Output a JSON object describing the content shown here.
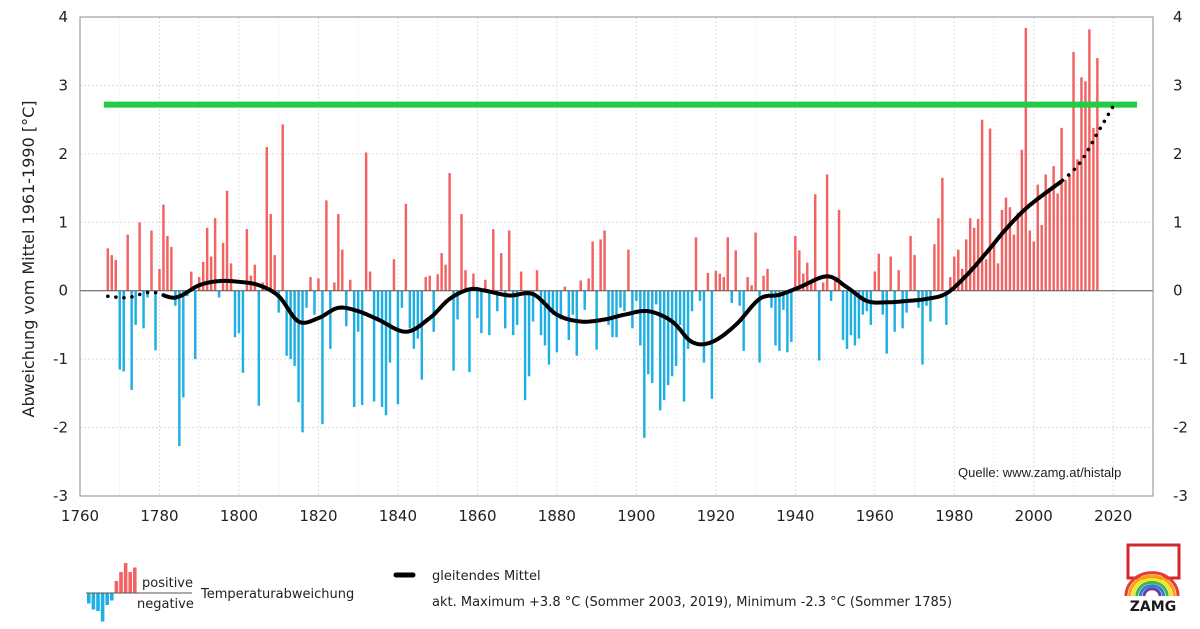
{
  "chart_data": {
    "type": "bar",
    "ylabel": "Abweichung vom Mittel 1961-1990 [°C]",
    "xlim": [
      1760,
      2030
    ],
    "ylim": [
      -3,
      4
    ],
    "xticks": [
      1760,
      1780,
      1800,
      1820,
      1840,
      1860,
      1880,
      1900,
      1920,
      1940,
      1960,
      1980,
      2000,
      2020
    ],
    "yticks": [
      -3,
      -2,
      -1,
      0,
      1,
      2,
      3,
      4
    ],
    "grid": true,
    "colors": {
      "positive": "#f26363",
      "negative": "#1fb0e3",
      "smooth": "#000000",
      "maximum_line": "#22cc44"
    },
    "x_start": 1767,
    "values": [
      0.62,
      0.52,
      0.45,
      -1.15,
      -1.18,
      0.82,
      -1.45,
      -0.5,
      1.0,
      -0.55,
      -0.1,
      0.88,
      -0.87,
      0.32,
      1.26,
      0.8,
      0.64,
      -0.22,
      -2.27,
      -1.56,
      -0.08,
      0.28,
      -1.0,
      0.2,
      0.42,
      0.92,
      0.5,
      1.06,
      -0.1,
      0.7,
      1.46,
      0.4,
      -0.68,
      -0.62,
      -1.2,
      0.9,
      0.22,
      0.38,
      -1.68,
      0.12,
      2.1,
      1.12,
      0.52,
      -0.32,
      2.43,
      -0.95,
      -1.0,
      -1.1,
      -1.63,
      -2.07,
      -0.25,
      0.2,
      -0.35,
      0.18,
      -1.95,
      1.32,
      -0.85,
      0.12,
      1.12,
      0.6,
      -0.52,
      0.16,
      -1.7,
      -0.6,
      -1.67,
      2.02,
      0.28,
      -1.62,
      -0.42,
      -1.7,
      -1.82,
      -1.05,
      0.46,
      -1.66,
      -0.25,
      1.27,
      -0.55,
      -0.85,
      -0.7,
      -1.3,
      0.2,
      0.22,
      -0.6,
      0.24,
      0.55,
      0.38,
      1.72,
      -1.17,
      -0.42,
      1.12,
      0.3,
      -1.19,
      0.25,
      -0.4,
      -0.62,
      0.16,
      -0.65,
      0.9,
      -0.3,
      0.55,
      -0.55,
      0.88,
      -0.65,
      -0.5,
      0.28,
      -1.6,
      -1.25,
      -0.45,
      0.3,
      -0.65,
      -0.8,
      -1.08,
      -0.35,
      -0.9,
      -0.42,
      0.06,
      -0.72,
      -0.35,
      -0.95,
      0.15,
      -0.28,
      0.18,
      0.72,
      -0.86,
      0.75,
      0.88,
      -0.5,
      -0.68,
      -0.68,
      -0.25,
      -0.3,
      0.6,
      -0.55,
      -0.15,
      -0.8,
      -2.15,
      -1.22,
      -1.35,
      -0.2,
      -1.75,
      -1.6,
      -1.38,
      -1.25,
      -1.1,
      -0.5,
      -1.62,
      -0.85,
      -0.3,
      0.78,
      -0.15,
      -1.05,
      0.26,
      -1.58,
      0.29,
      0.25,
      0.2,
      0.78,
      -0.18,
      0.59,
      -0.22,
      -0.88,
      0.2,
      0.08,
      0.85,
      -1.05,
      0.22,
      0.32,
      -0.25,
      -0.8,
      -0.88,
      -0.28,
      -0.9,
      -0.75,
      0.8,
      0.59,
      0.25,
      0.41,
      0.12,
      1.41,
      -1.02,
      0.12,
      1.7,
      -0.15,
      0.2,
      1.18,
      -0.72,
      -0.85,
      -0.65,
      -0.8,
      -0.7,
      -0.35,
      -0.3,
      -0.5,
      0.28,
      0.54,
      -0.35,
      -0.92,
      0.5,
      -0.6,
      0.3,
      -0.55,
      -0.32,
      0.8,
      0.52,
      -0.25,
      -1.08,
      -0.22,
      -0.45,
      0.68,
      1.06,
      1.65,
      -0.5,
      0.2,
      0.5,
      0.6,
      0.32,
      0.75,
      1.06,
      0.92,
      1.05,
      2.5,
      0.46,
      2.37,
      0.72,
      0.4,
      1.18,
      1.36,
      1.22,
      0.82,
      1.14,
      2.06,
      3.84,
      0.88,
      0.72,
      1.55,
      0.96,
      1.7,
      1.45,
      1.82,
      1.42,
      2.38,
      1.62,
      1.7,
      3.49,
      1.92,
      3.12,
      3.06,
      3.82,
      2.38,
      3.4
    ],
    "smooth_x": [
      1767,
      1772,
      1778,
      1784,
      1790,
      1795,
      1800,
      1805,
      1810,
      1815,
      1820,
      1825,
      1830,
      1835,
      1842,
      1848,
      1853,
      1858,
      1862,
      1868,
      1874,
      1880,
      1886,
      1892,
      1897,
      1903,
      1909,
      1914,
      1919,
      1925,
      1931,
      1936,
      1941,
      1948,
      1953,
      1958,
      1963,
      1968,
      1973,
      1978,
      1983,
      1988,
      1993,
      1998,
      2003,
      2008,
      2012,
      2016,
      2020
    ],
    "smooth_y": [
      -0.08,
      -0.1,
      -0.02,
      -0.1,
      0.08,
      0.14,
      0.13,
      0.08,
      -0.08,
      -0.45,
      -0.4,
      -0.25,
      -0.3,
      -0.42,
      -0.6,
      -0.4,
      -0.12,
      0.02,
      0.0,
      -0.07,
      -0.05,
      -0.35,
      -0.45,
      -0.42,
      -0.35,
      -0.3,
      -0.45,
      -0.75,
      -0.75,
      -0.5,
      -0.12,
      -0.06,
      0.05,
      0.21,
      0.05,
      -0.15,
      -0.17,
      -0.15,
      -0.12,
      -0.04,
      0.22,
      0.55,
      0.9,
      1.2,
      1.43,
      1.65,
      1.9,
      2.3,
      2.7
    ],
    "smooth_dotted_before": 1781,
    "smooth_dotted_after": 2007,
    "maximum_level": 2.72,
    "maximum_line_from": 1767,
    "maximum_line_to": 2025
  },
  "source_text": "Quelle: www.zamg.at/histalp",
  "legend": {
    "positive": "positive",
    "negative": "negative",
    "bars_label": "Temperaturabweichung",
    "smooth_label": "gleitendes Mittel",
    "extremes_note": "akt. Maximum +3.8 °C (Sommer 2003, 2019), Minimum -2.3 °C (Sommer 1785)"
  },
  "logo": {
    "text": "ZAMG",
    "rainbow_colors": [
      "#e63b2e",
      "#f7a11a",
      "#f3e41c",
      "#3cb54a",
      "#2a7fd4",
      "#6a3aa0"
    ]
  }
}
